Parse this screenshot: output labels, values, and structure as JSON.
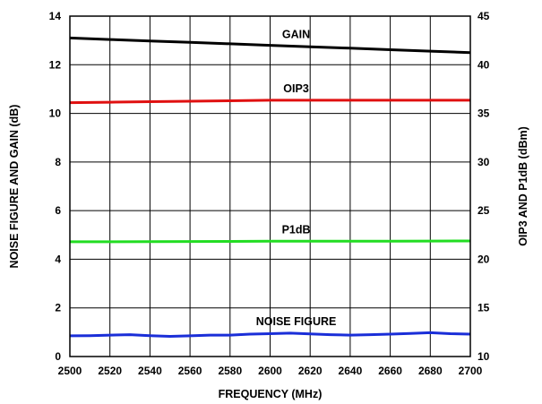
{
  "chart_data": {
    "type": "line",
    "xlabel": "FREQUENCY (MHz)",
    "ylabel_left": "NOISE FIGURE AND GAIN (dB)",
    "ylabel_right": "OIP3 AND P1dB (dBm)",
    "xlim": [
      2500,
      2700
    ],
    "ylim_left": [
      0,
      14
    ],
    "ylim_right": [
      10,
      45
    ],
    "x_ticks": [
      2500,
      2520,
      2540,
      2560,
      2580,
      2600,
      2620,
      2640,
      2660,
      2680,
      2700
    ],
    "y_ticks_left": [
      0,
      2,
      4,
      6,
      8,
      10,
      12,
      14
    ],
    "y_ticks_right": [
      10,
      15,
      20,
      25,
      30,
      35,
      40,
      45
    ],
    "grid": true,
    "series": [
      {
        "name": "GAIN",
        "axis": "left",
        "color": "#000000",
        "x": [
          2500,
          2520,
          2540,
          2560,
          2580,
          2600,
          2620,
          2640,
          2660,
          2680,
          2700
        ],
        "values": [
          13.1,
          13.04,
          12.98,
          12.92,
          12.86,
          12.8,
          12.74,
          12.68,
          12.62,
          12.56,
          12.5
        ]
      },
      {
        "name": "OIP3",
        "axis": "right",
        "color": "#e01010",
        "x": [
          2500,
          2520,
          2540,
          2560,
          2580,
          2600,
          2620,
          2640,
          2660,
          2680,
          2700
        ],
        "values": [
          36.1,
          36.15,
          36.2,
          36.25,
          36.3,
          36.35,
          36.35,
          36.35,
          36.35,
          36.35,
          36.35
        ]
      },
      {
        "name": "P1dB",
        "axis": "right",
        "color": "#22dd22",
        "x": [
          2500,
          2520,
          2540,
          2560,
          2580,
          2600,
          2620,
          2640,
          2660,
          2680,
          2700
        ],
        "values": [
          21.8,
          21.8,
          21.82,
          21.83,
          21.84,
          21.85,
          21.85,
          21.86,
          21.86,
          21.87,
          21.88
        ]
      },
      {
        "name": "NOISE FIGURE",
        "axis": "left",
        "color": "#1a2ed8",
        "x": [
          2500,
          2510,
          2520,
          2530,
          2540,
          2550,
          2560,
          2570,
          2580,
          2590,
          2600,
          2610,
          2620,
          2630,
          2640,
          2650,
          2660,
          2670,
          2680,
          2690,
          2700
        ],
        "values": [
          0.85,
          0.86,
          0.88,
          0.9,
          0.86,
          0.83,
          0.85,
          0.88,
          0.88,
          0.92,
          0.94,
          0.96,
          0.93,
          0.9,
          0.88,
          0.9,
          0.92,
          0.95,
          0.98,
          0.94,
          0.92
        ]
      }
    ]
  }
}
